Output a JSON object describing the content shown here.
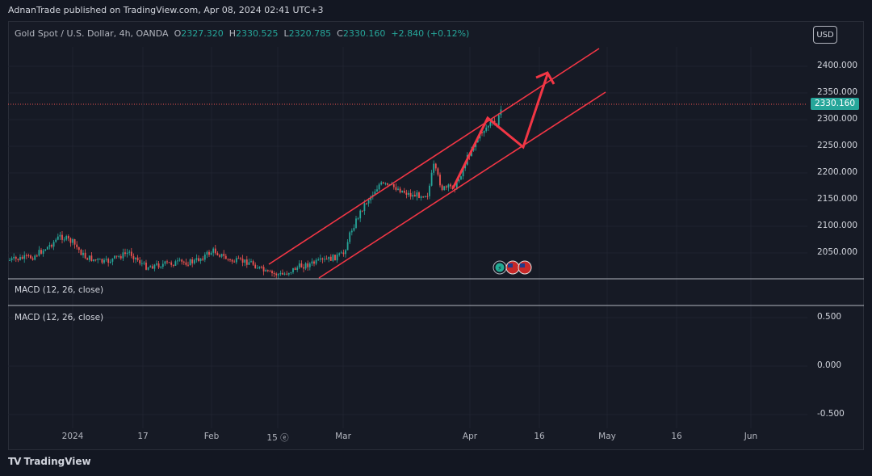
{
  "header": {
    "snapshot_text": "AdnanTrade published on TradingView.com, Apr 08, 2024 02:41 UTC+3"
  },
  "legend": {
    "symbol": "Gold Spot / U.S. Dollar, 4h, OANDA",
    "open_label": "O",
    "open": "2327.320",
    "high_label": "H",
    "high": "2330.525",
    "low_label": "L",
    "low": "2320.785",
    "close_label": "C",
    "close": "2330.160",
    "change": "+2.840 (+0.12%)"
  },
  "currency_button": "USD",
  "price_axis": {
    "ticks": [
      "2400.000",
      "2350.000",
      "2300.000",
      "2250.000",
      "2200.000",
      "2150.000",
      "2100.000",
      "2050.000"
    ],
    "current_price": "2330.160"
  },
  "macd_panel_1": {
    "label": "MACD (12, 26, close)"
  },
  "macd_panel_2": {
    "label": "MACD (12, 26, close)",
    "ticks": [
      "0.500",
      "0.000",
      "-0.500"
    ]
  },
  "time_axis": {
    "ticks": [
      "2024",
      "17",
      "Feb",
      "15 ⓔ",
      "Mar",
      "Apr",
      "16",
      "May",
      "16",
      "Jun"
    ]
  },
  "footer": {
    "logo": "TV",
    "brand": "TradingView"
  },
  "colors": {
    "background": "#131722",
    "bull": "#26a69a",
    "bear": "#ef5350",
    "channel": "#f23645",
    "price_line": "#ef5350"
  }
}
